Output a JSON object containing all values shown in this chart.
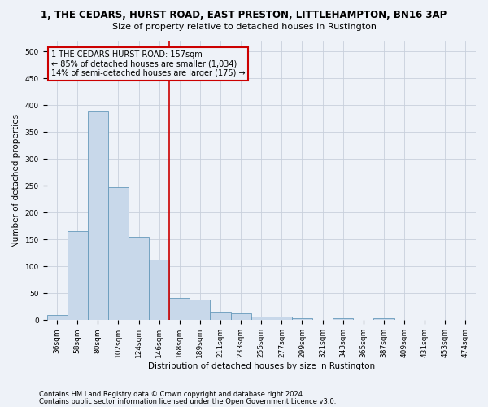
{
  "title_line1": "1, THE CEDARS, HURST ROAD, EAST PRESTON, LITTLEHAMPTON, BN16 3AP",
  "title_line2": "Size of property relative to detached houses in Rustington",
  "xlabel": "Distribution of detached houses by size in Rustington",
  "ylabel": "Number of detached properties",
  "bar_values": [
    10,
    165,
    390,
    248,
    155,
    113,
    42,
    38,
    16,
    13,
    7,
    6,
    4,
    0,
    3,
    0,
    3,
    0,
    0,
    0,
    0
  ],
  "bar_labels": [
    "36sqm",
    "58sqm",
    "80sqm",
    "102sqm",
    "124sqm",
    "146sqm",
    "168sqm",
    "189sqm",
    "211sqm",
    "233sqm",
    "255sqm",
    "277sqm",
    "299sqm",
    "321sqm",
    "343sqm",
    "365sqm",
    "387sqm",
    "409sqm",
    "431sqm",
    "453sqm",
    "474sqm"
  ],
  "bar_color": "#c8d8ea",
  "bar_edgecolor": "#6699bb",
  "grid_color": "#c8d0dc",
  "background_color": "#eef2f8",
  "vline_color": "#cc0000",
  "annotation_text": "1 THE CEDARS HURST ROAD: 157sqm\n← 85% of detached houses are smaller (1,034)\n14% of semi-detached houses are larger (175) →",
  "annotation_box_color": "#cc0000",
  "ylim": [
    0,
    520
  ],
  "yticks": [
    0,
    50,
    100,
    150,
    200,
    250,
    300,
    350,
    400,
    450,
    500
  ],
  "footnote1": "Contains HM Land Registry data © Crown copyright and database right 2024.",
  "footnote2": "Contains public sector information licensed under the Open Government Licence v3.0.",
  "title_fontsize": 8.5,
  "subtitle_fontsize": 8.0,
  "axis_label_fontsize": 7.5,
  "ylabel_fontsize": 7.5,
  "tick_fontsize": 6.5,
  "annotation_fontsize": 7.0,
  "footnote_fontsize": 6.0
}
